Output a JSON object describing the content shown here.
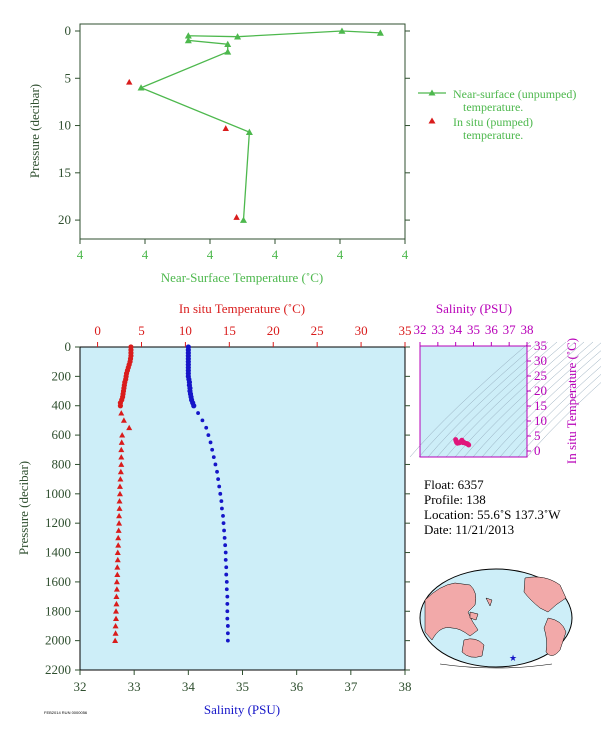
{
  "colors": {
    "green": "#4db84d",
    "dark_green": "#2f4f2f",
    "red": "#d91c1c",
    "blue": "#1515c8",
    "magenta": "#b800b8",
    "pink": "#e0157a",
    "panel_bg": "#cdeef8",
    "land": "#f2a9a9",
    "ocean": "#cdeef8"
  },
  "chart_data": [
    {
      "type": "line",
      "xlabel": "Near-Surface Temperature (˚C)",
      "ylabel": "Pressure (decibar)",
      "x_tick_labels": [
        "4",
        "4",
        "4",
        "4",
        "4",
        "4"
      ],
      "y_ticks": [
        "0",
        "5",
        "10",
        "15",
        "20"
      ],
      "ylim": [
        0,
        22
      ],
      "y_inverted": true,
      "series": [
        {
          "name": "Near-surface (unpumped) temperature.",
          "marker": "triangle-line",
          "points": [
            {
              "t": 4.3095,
              "p": 0.2
            },
            {
              "t": 4.29,
              "p": 0.0
            },
            {
              "t": 4.237,
              "p": 0.6
            },
            {
              "t": 4.212,
              "p": 0.5
            },
            {
              "t": 4.212,
              "p": 1.0
            },
            {
              "t": 4.232,
              "p": 1.4
            },
            {
              "t": 4.232,
              "p": 2.2
            },
            {
              "t": 4.188,
              "p": 6.0
            },
            {
              "t": 4.243,
              "p": 10.7
            },
            {
              "t": 4.24,
              "p": 20.0
            }
          ]
        },
        {
          "name": "In situ (pumped) temperature.",
          "marker": "triangle",
          "points": [
            {
              "t": 4.182,
              "p": 5.4
            },
            {
              "t": 4.231,
              "p": 10.3
            },
            {
              "t": 4.2365,
              "p": 19.7
            }
          ]
        }
      ]
    },
    {
      "type": "scatter",
      "ylabel": "Pressure (decibar)",
      "top_xlabel": "In situ Temperature (˚C)",
      "bottom_xlabel": "Salinity (PSU)",
      "temp_ticks": [
        "0",
        "5",
        "10",
        "15",
        "20",
        "25",
        "30",
        "35"
      ],
      "sal_ticks": [
        "32",
        "33",
        "34",
        "35",
        "36",
        "37",
        "38"
      ],
      "pres_ticks": [
        "0",
        "200",
        "400",
        "600",
        "800",
        "1000",
        "1200",
        "1400",
        "1600",
        "1800",
        "2000",
        "2200"
      ],
      "temp_range": [
        -2,
        35
      ],
      "sal_range": [
        32,
        38
      ],
      "pres_range": [
        0,
        2200
      ],
      "temperature_profile": [
        [
          0,
          3.8
        ],
        [
          20,
          3.8
        ],
        [
          40,
          3.8
        ],
        [
          60,
          3.8
        ],
        [
          80,
          3.75
        ],
        [
          100,
          3.7
        ],
        [
          120,
          3.6
        ],
        [
          140,
          3.5
        ],
        [
          160,
          3.4
        ],
        [
          180,
          3.3
        ],
        [
          200,
          3.25
        ],
        [
          220,
          3.2
        ],
        [
          240,
          3.1
        ],
        [
          260,
          3.05
        ],
        [
          280,
          3.0
        ],
        [
          300,
          2.95
        ],
        [
          320,
          2.9
        ],
        [
          340,
          2.85
        ],
        [
          360,
          2.75
        ],
        [
          380,
          2.6
        ],
        [
          400,
          2.6
        ],
        [
          450,
          2.7
        ],
        [
          500,
          3.0
        ],
        [
          550,
          3.6
        ],
        [
          600,
          2.8
        ],
        [
          650,
          2.75
        ],
        [
          700,
          2.7
        ],
        [
          750,
          2.7
        ],
        [
          800,
          2.7
        ],
        [
          850,
          2.65
        ],
        [
          900,
          2.6
        ],
        [
          950,
          2.55
        ],
        [
          1000,
          2.55
        ],
        [
          1050,
          2.5
        ],
        [
          1100,
          2.5
        ],
        [
          1150,
          2.45
        ],
        [
          1200,
          2.45
        ],
        [
          1250,
          2.4
        ],
        [
          1300,
          2.35
        ],
        [
          1350,
          2.35
        ],
        [
          1400,
          2.3
        ],
        [
          1450,
          2.3
        ],
        [
          1500,
          2.25
        ],
        [
          1550,
          2.25
        ],
        [
          1600,
          2.2
        ],
        [
          1650,
          2.2
        ],
        [
          1700,
          2.15
        ],
        [
          1750,
          2.15
        ],
        [
          1800,
          2.1
        ],
        [
          1850,
          2.1
        ],
        [
          1900,
          2.05
        ],
        [
          1950,
          2.05
        ],
        [
          2000,
          2.0
        ]
      ],
      "salinity_profile": [
        [
          0,
          34.0
        ],
        [
          20,
          34.0
        ],
        [
          40,
          34.0
        ],
        [
          60,
          34.0
        ],
        [
          80,
          34.0
        ],
        [
          100,
          34.0
        ],
        [
          120,
          34.0
        ],
        [
          140,
          34.0
        ],
        [
          160,
          34.0
        ],
        [
          180,
          34.0
        ],
        [
          200,
          34.0
        ],
        [
          220,
          34.01
        ],
        [
          240,
          34.02
        ],
        [
          260,
          34.02
        ],
        [
          280,
          34.03
        ],
        [
          300,
          34.03
        ],
        [
          320,
          34.04
        ],
        [
          340,
          34.05
        ],
        [
          360,
          34.06
        ],
        [
          380,
          34.08
        ],
        [
          400,
          34.1
        ],
        [
          450,
          34.18
        ],
        [
          500,
          34.26
        ],
        [
          550,
          34.33
        ],
        [
          600,
          34.37
        ],
        [
          650,
          34.41
        ],
        [
          700,
          34.44
        ],
        [
          750,
          34.47
        ],
        [
          800,
          34.5
        ],
        [
          850,
          34.53
        ],
        [
          900,
          34.55
        ],
        [
          950,
          34.57
        ],
        [
          1000,
          34.59
        ],
        [
          1050,
          34.61
        ],
        [
          1100,
          34.62
        ],
        [
          1150,
          34.64
        ],
        [
          1200,
          34.65
        ],
        [
          1250,
          34.66
        ],
        [
          1300,
          34.67
        ],
        [
          1350,
          34.68
        ],
        [
          1400,
          34.69
        ],
        [
          1450,
          34.69
        ],
        [
          1500,
          34.7
        ],
        [
          1550,
          34.7
        ],
        [
          1600,
          34.71
        ],
        [
          1650,
          34.71
        ],
        [
          1700,
          34.72
        ],
        [
          1750,
          34.72
        ],
        [
          1800,
          34.72
        ],
        [
          1850,
          34.72
        ],
        [
          1900,
          34.73
        ],
        [
          1950,
          34.73
        ],
        [
          2000,
          34.73
        ]
      ]
    },
    {
      "type": "scatter",
      "xlabel": "Salinity (PSU)",
      "ylabel": "In situ Temperature (˚C)",
      "x_ticks": [
        "32",
        "33",
        "34",
        "35",
        "36",
        "37",
        "38"
      ],
      "y_ticks": [
        "0",
        "5",
        "10",
        "15",
        "20",
        "25",
        "30",
        "35"
      ],
      "xlim": [
        32,
        38
      ],
      "ylim": [
        -2,
        35
      ],
      "ts_points": [
        [
          34.0,
          3.8
        ],
        [
          34.02,
          3.4
        ],
        [
          34.05,
          2.9
        ],
        [
          34.1,
          2.6
        ],
        [
          34.2,
          2.7
        ],
        [
          34.3,
          3.2
        ],
        [
          34.35,
          3.6
        ],
        [
          34.4,
          2.8
        ],
        [
          34.5,
          2.7
        ],
        [
          34.6,
          2.5
        ],
        [
          34.65,
          2.4
        ],
        [
          34.7,
          2.2
        ],
        [
          34.73,
          2.0
        ],
        [
          34.28,
          3.0
        ],
        [
          34.45,
          2.9
        ]
      ]
    }
  ],
  "info": {
    "float": "Float:  6357",
    "profile": "Profile:  138",
    "location": "Location:  55.6˚S  137.3˚W",
    "date": "Date:  11/21/2013"
  },
  "footnote": "FEB2014 RUN 0000056"
}
